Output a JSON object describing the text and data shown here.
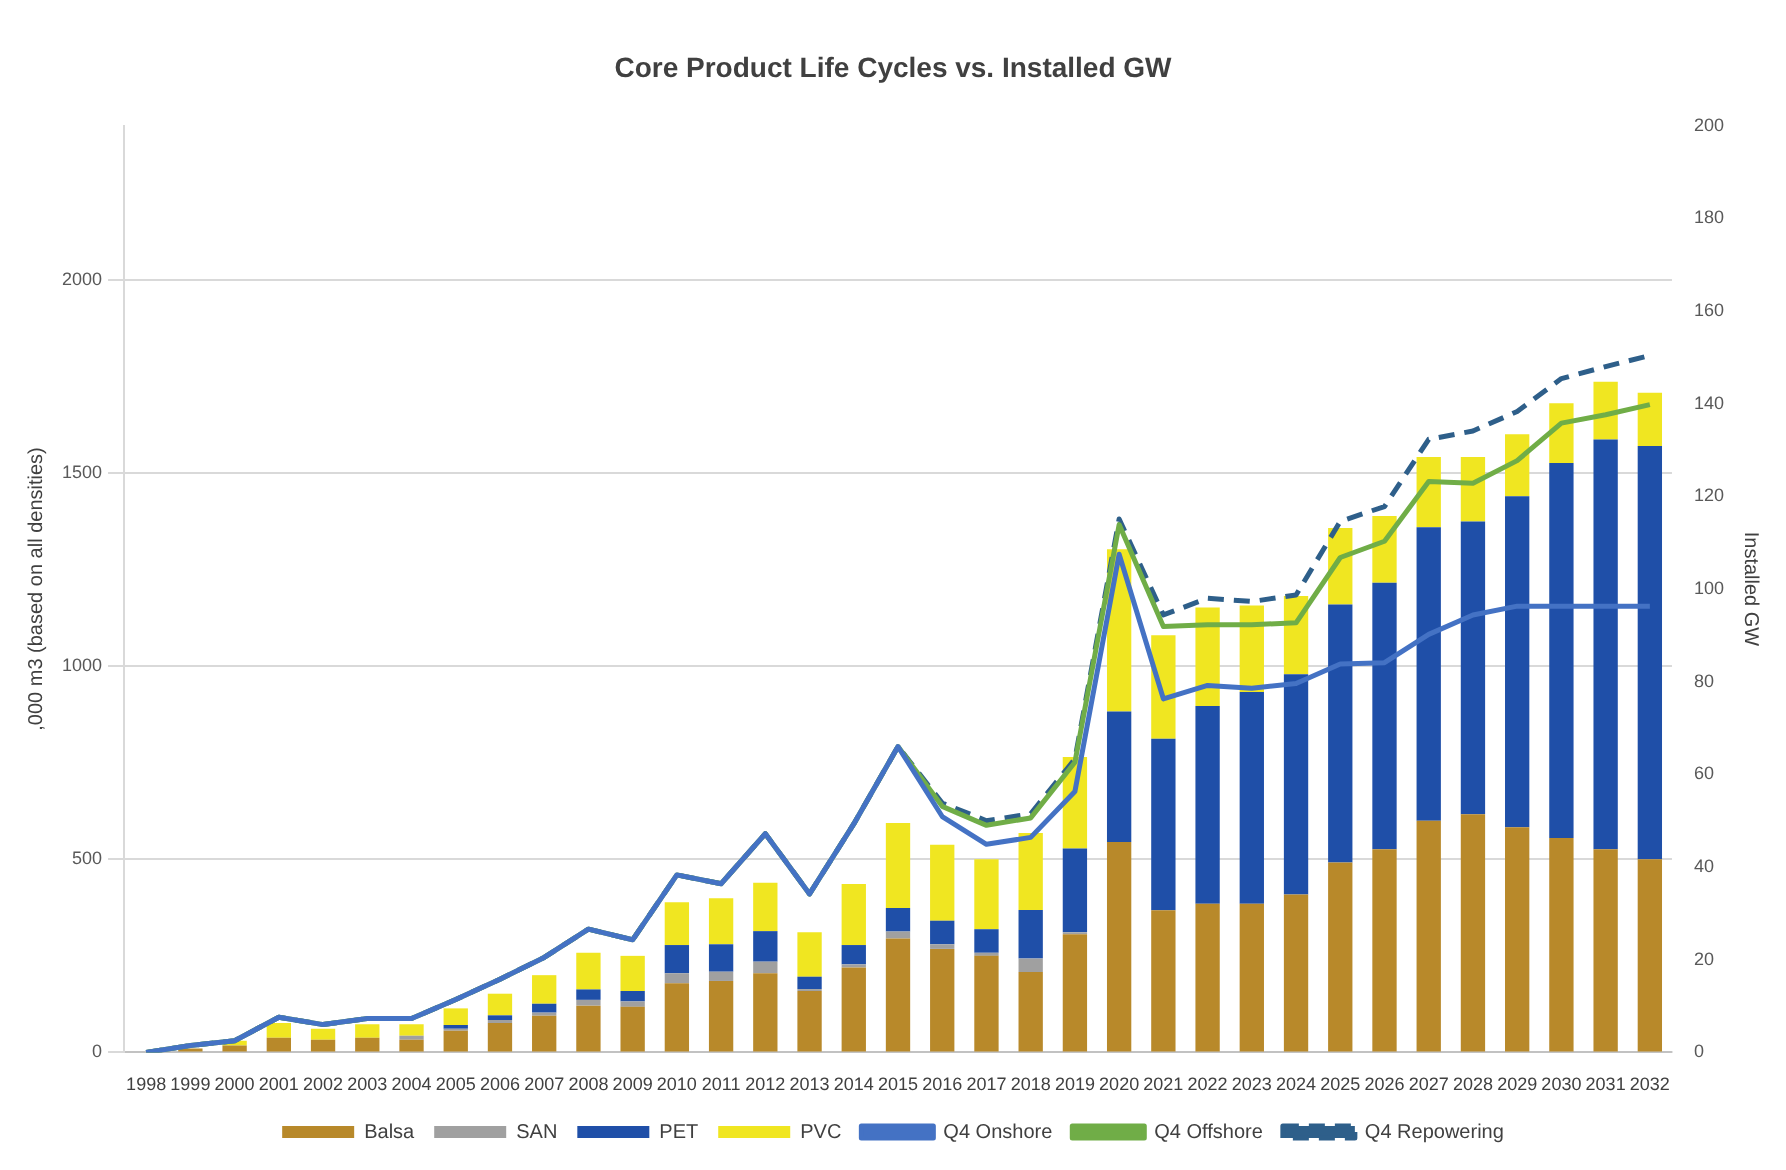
{
  "chart_data": {
    "type": "bar",
    "title": "Core Product Life Cycles vs. Installed GW",
    "ylabel": ",000 m3 (based on all densities)",
    "y2label": "Installed GW",
    "categories": [
      "1998",
      "1999",
      "2000",
      "2001",
      "2002",
      "2003",
      "2004",
      "2005",
      "2006",
      "2007",
      "2008",
      "2009",
      "2010",
      "2011",
      "2012",
      "2013",
      "2014",
      "2015",
      "2016",
      "2017",
      "2018",
      "2019",
      "2020",
      "2021",
      "2022",
      "2023",
      "2024",
      "2025",
      "2026",
      "2027",
      "2028",
      "2029",
      "2030",
      "2031",
      "2032"
    ],
    "stacked": true,
    "ylim": [
      0,
      2400
    ],
    "yticks": [
      0,
      500,
      1000,
      1500,
      2000
    ],
    "y2lim": [
      0,
      200
    ],
    "y2ticks": [
      0,
      20,
      40,
      60,
      80,
      100,
      120,
      140,
      160,
      180,
      200
    ],
    "grid": "y",
    "legend": "bottom",
    "marker": "none",
    "series": [
      {
        "name": "Balsa",
        "color": "#b8892a",
        "values": [
          0,
          10,
          18,
          38,
          33,
          38,
          33,
          56,
          76,
          95,
          121,
          118,
          179,
          185,
          205,
          159,
          220,
          295,
          268,
          250,
          208,
          306,
          545,
          368,
          385,
          385,
          409,
          492,
          526,
          600,
          617,
          583,
          555,
          526,
          500
        ]
      },
      {
        "name": "SAN",
        "color": "#a0a0a0",
        "values": [
          0,
          0,
          0,
          0,
          0,
          0,
          10,
          5,
          8,
          8,
          15,
          14,
          26,
          24,
          30,
          5,
          8,
          18,
          12,
          8,
          35,
          5,
          0,
          0,
          0,
          0,
          0,
          0,
          0,
          0,
          0,
          0,
          0,
          0,
          0
        ]
      },
      {
        "name": "PET",
        "color": "#1f4fa8",
        "values": [
          0,
          0,
          0,
          0,
          0,
          0,
          0,
          10,
          12,
          23,
          27,
          27,
          73,
          71,
          79,
          32,
          50,
          61,
          61,
          61,
          126,
          217,
          338,
          444,
          512,
          548,
          570,
          668,
          690,
          760,
          758,
          857,
          971,
          1061,
          1070
        ]
      },
      {
        "name": "PVC",
        "color": "#f0e621",
        "values": [
          0,
          0,
          12,
          38,
          28,
          35,
          30,
          43,
          56,
          74,
          95,
          91,
          111,
          119,
          125,
          115,
          158,
          220,
          197,
          181,
          199,
          237,
          420,
          268,
          255,
          224,
          203,
          198,
          173,
          182,
          167,
          161,
          155,
          150,
          138
        ]
      },
      {
        "name": "Q4 Onshore",
        "type": "line",
        "axis": "y2",
        "line_style": "solid",
        "color": "#4472c4",
        "values": [
          0,
          1.5,
          2.5,
          7.6,
          6,
          7.3,
          7.3,
          11.4,
          15.8,
          20.5,
          26.6,
          24.3,
          38.3,
          36.4,
          47.2,
          34.2,
          49.3,
          66,
          50.9,
          44.9,
          46.4,
          56.3,
          107.5,
          76.3,
          79.2,
          78.6,
          79.6,
          83.8,
          84.1,
          90.2,
          94.4,
          96.3,
          96.3,
          96.3,
          96.3
        ]
      },
      {
        "name": "Q4 Offshore",
        "type": "line",
        "axis": "y2",
        "line_style": "solid",
        "color": "#70ad47",
        "values": [
          0,
          1.5,
          2.5,
          7.6,
          6,
          7.3,
          7.3,
          11.4,
          15.8,
          20.5,
          26.6,
          24.3,
          38.3,
          36.4,
          47.2,
          34.2,
          49.3,
          66,
          53.1,
          49,
          50.6,
          62.6,
          113.9,
          91.9,
          92.3,
          92.3,
          92.7,
          106.8,
          110.3,
          123.2,
          122.8,
          127.7,
          135.8,
          137.6,
          139.8
        ]
      },
      {
        "name": "Q4 Repowering",
        "type": "line",
        "axis": "y2",
        "line_style": "dashed",
        "color": "#2e5f8a",
        "values": [
          0,
          1.5,
          2.5,
          7.6,
          6,
          7.3,
          7.3,
          11.4,
          15.8,
          20.5,
          26.6,
          24.3,
          38.3,
          36.4,
          47.2,
          34.2,
          49.3,
          66,
          53.8,
          50,
          51.5,
          63.3,
          115.1,
          94.4,
          98,
          97.3,
          98.7,
          114.6,
          117.8,
          132.3,
          134.1,
          138.3,
          145.4,
          148,
          150.4
        ]
      }
    ]
  }
}
